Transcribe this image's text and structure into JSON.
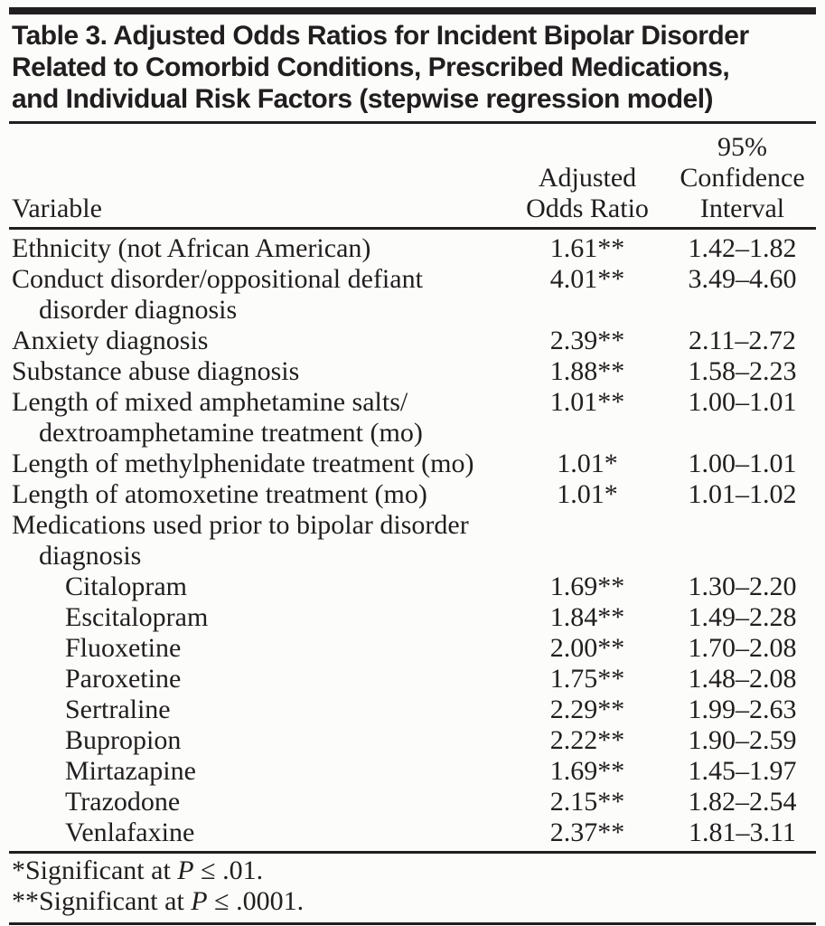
{
  "title_lines": [
    "Table 3. Adjusted Odds Ratios for Incident Bipolar Disorder",
    "Related to Comorbid Conditions, Prescribed Medications,",
    "and Individual Risk Factors (stepwise regression model)"
  ],
  "table": {
    "headers": {
      "variable": "Variable",
      "aor_lines": [
        "Adjusted",
        "Odds Ratio"
      ],
      "ci_lines": [
        "95%",
        "Confidence",
        "Interval"
      ]
    },
    "rows": [
      {
        "lines": [
          "Ethnicity (not African American)"
        ],
        "indent": 0,
        "aor": "1.61**",
        "ci": "1.42–1.82"
      },
      {
        "lines": [
          "Conduct disorder/oppositional defiant",
          "disorder diagnosis"
        ],
        "indent": 0,
        "aor": "4.01**",
        "ci": "3.49–4.60"
      },
      {
        "lines": [
          "Anxiety diagnosis"
        ],
        "indent": 0,
        "aor": "2.39**",
        "ci": "2.11–2.72"
      },
      {
        "lines": [
          "Substance abuse diagnosis"
        ],
        "indent": 0,
        "aor": "1.88**",
        "ci": "1.58–2.23"
      },
      {
        "lines": [
          "Length of mixed amphetamine salts/",
          "dextroamphetamine treatment (mo)"
        ],
        "indent": 0,
        "aor": "1.01**",
        "ci": "1.00–1.01"
      },
      {
        "lines": [
          "Length of methylphenidate treatment (mo)"
        ],
        "indent": 0,
        "aor": "1.01*",
        "ci": "1.00–1.01"
      },
      {
        "lines": [
          "Length of atomoxetine treatment (mo)"
        ],
        "indent": 0,
        "aor": "1.01*",
        "ci": "1.01–1.02"
      },
      {
        "lines": [
          "Medications used prior to bipolar disorder",
          "diagnosis"
        ],
        "indent": 0,
        "aor": "",
        "ci": ""
      },
      {
        "lines": [
          "Citalopram"
        ],
        "indent": 1,
        "aor": "1.69**",
        "ci": "1.30–2.20"
      },
      {
        "lines": [
          "Escitalopram"
        ],
        "indent": 1,
        "aor": "1.84**",
        "ci": "1.49–2.28"
      },
      {
        "lines": [
          "Fluoxetine"
        ],
        "indent": 1,
        "aor": "2.00**",
        "ci": "1.70–2.08"
      },
      {
        "lines": [
          "Paroxetine"
        ],
        "indent": 1,
        "aor": "1.75**",
        "ci": "1.48–2.08"
      },
      {
        "lines": [
          "Sertraline"
        ],
        "indent": 1,
        "aor": "2.29**",
        "ci": "1.99–2.63"
      },
      {
        "lines": [
          "Bupropion"
        ],
        "indent": 1,
        "aor": "2.22**",
        "ci": "1.90–2.59"
      },
      {
        "lines": [
          "Mirtazapine"
        ],
        "indent": 1,
        "aor": "1.69**",
        "ci": "1.45–1.97"
      },
      {
        "lines": [
          "Trazodone"
        ],
        "indent": 1,
        "aor": "2.15**",
        "ci": "1.82–2.54"
      },
      {
        "lines": [
          "Venlafaxine"
        ],
        "indent": 1,
        "aor": "2.37**",
        "ci": "1.81–3.11"
      }
    ]
  },
  "footnotes": [
    {
      "pre": "*Significant at ",
      "italic": "P",
      "post": " ≤ .01."
    },
    {
      "pre": "**Significant at ",
      "italic": "P",
      "post": " ≤ .0001."
    }
  ],
  "colors": {
    "text": "#211e1f",
    "rule": "#211e1f",
    "background": "#fcfcfa"
  }
}
